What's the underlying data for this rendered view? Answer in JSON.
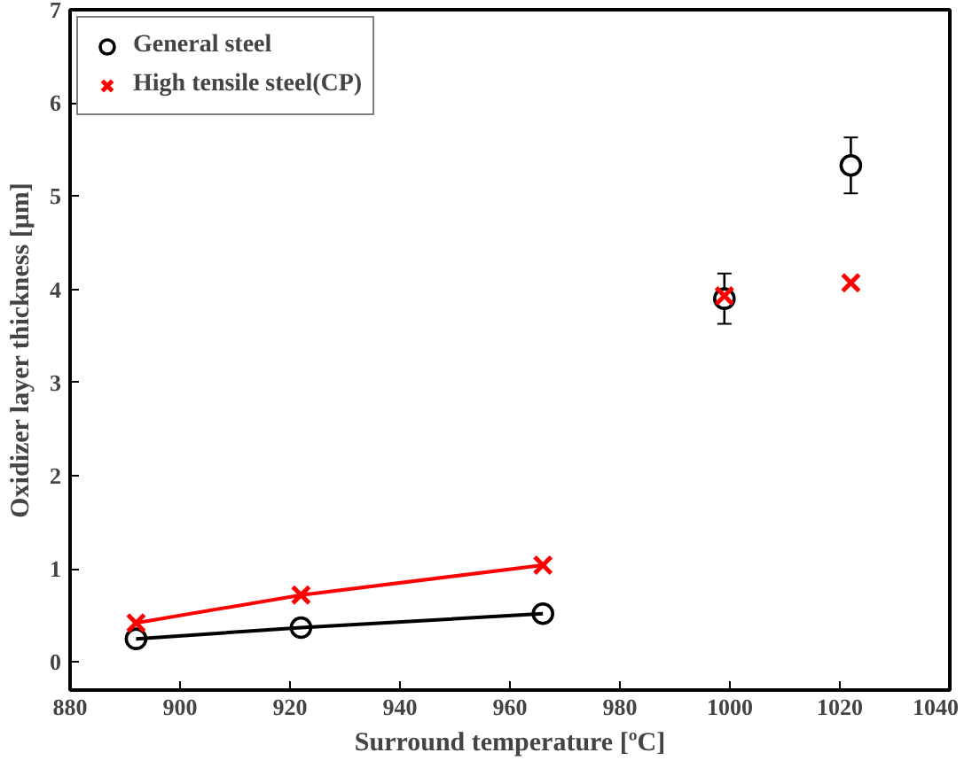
{
  "chart_data": {
    "type": "scatter",
    "xlabel": "Surround temperature [ºC]",
    "ylabel": "Oxidizer layer thickness [μm]",
    "xlim": [
      880,
      1040
    ],
    "ylim": [
      -0.3,
      7
    ],
    "xticks": [
      880,
      900,
      920,
      940,
      960,
      980,
      1000,
      1020,
      1040
    ],
    "yticks": [
      0,
      1,
      2,
      3,
      4,
      5,
      6,
      7
    ],
    "grid": false,
    "legend": "top left",
    "series": [
      {
        "name": "General steel",
        "color": "#000000",
        "marker": "circle",
        "x": [
          892,
          922,
          966,
          999,
          1022
        ],
        "values": [
          0.25,
          0.37,
          0.52,
          3.9,
          5.33
        ],
        "errors": [
          null,
          null,
          null,
          0.27,
          0.3
        ]
      },
      {
        "name": "High tensile steel(CP)",
        "color": "#ff0000",
        "marker": "cross",
        "x": [
          892,
          922,
          966,
          999,
          1022
        ],
        "values": [
          0.42,
          0.72,
          1.04,
          3.93,
          4.07
        ]
      },
      {
        "type": "line",
        "color": "#000000",
        "x": [
          892,
          922,
          966
        ],
        "values": [
          0.25,
          0.37,
          0.52
        ]
      },
      {
        "type": "line",
        "color": "#ff0000",
        "x": [
          892,
          922,
          966
        ],
        "values": [
          0.42,
          0.72,
          1.04
        ]
      }
    ]
  }
}
